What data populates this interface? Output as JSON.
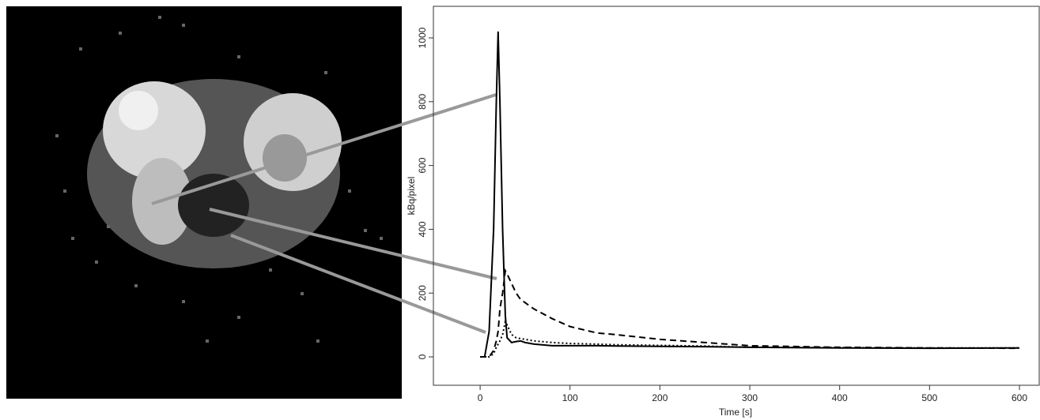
{
  "chart_data": {
    "type": "line",
    "xlabel": "Time [s]",
    "ylabel": "kBq/pixel",
    "x": [
      0,
      5,
      10,
      15,
      18,
      20,
      22,
      25,
      28,
      30,
      35,
      40,
      45,
      50,
      60,
      80,
      100,
      130,
      150,
      200,
      250,
      300,
      400,
      500,
      600
    ],
    "series": [
      {
        "color": "#000000",
        "line_style": "solid",
        "values": [
          0,
          0,
          80,
          400,
          800,
          1020,
          800,
          400,
          130,
          60,
          45,
          48,
          50,
          45,
          40,
          35,
          35,
          35,
          34,
          33,
          32,
          30,
          28,
          27,
          28
        ]
      },
      {
        "color": "#000000",
        "line_style": "dashed",
        "values": [
          0,
          0,
          0,
          20,
          50,
          80,
          150,
          200,
          270,
          260,
          230,
          200,
          180,
          170,
          150,
          120,
          95,
          75,
          70,
          55,
          45,
          35,
          30,
          28,
          27
        ]
      },
      {
        "color": "#000000",
        "line_style": "dotted",
        "values": [
          0,
          0,
          0,
          10,
          30,
          40,
          50,
          70,
          110,
          100,
          70,
          60,
          57,
          55,
          50,
          45,
          42,
          40,
          38,
          36,
          34,
          30,
          29,
          28,
          28
        ]
      }
    ],
    "xlim": [
      -52,
      622
    ],
    "ylim": [
      -89,
      1099
    ],
    "xticks": [
      0,
      100,
      200,
      300,
      400,
      500,
      600
    ],
    "yticks": [
      0,
      200,
      400,
      600,
      800,
      1000
    ]
  }
}
